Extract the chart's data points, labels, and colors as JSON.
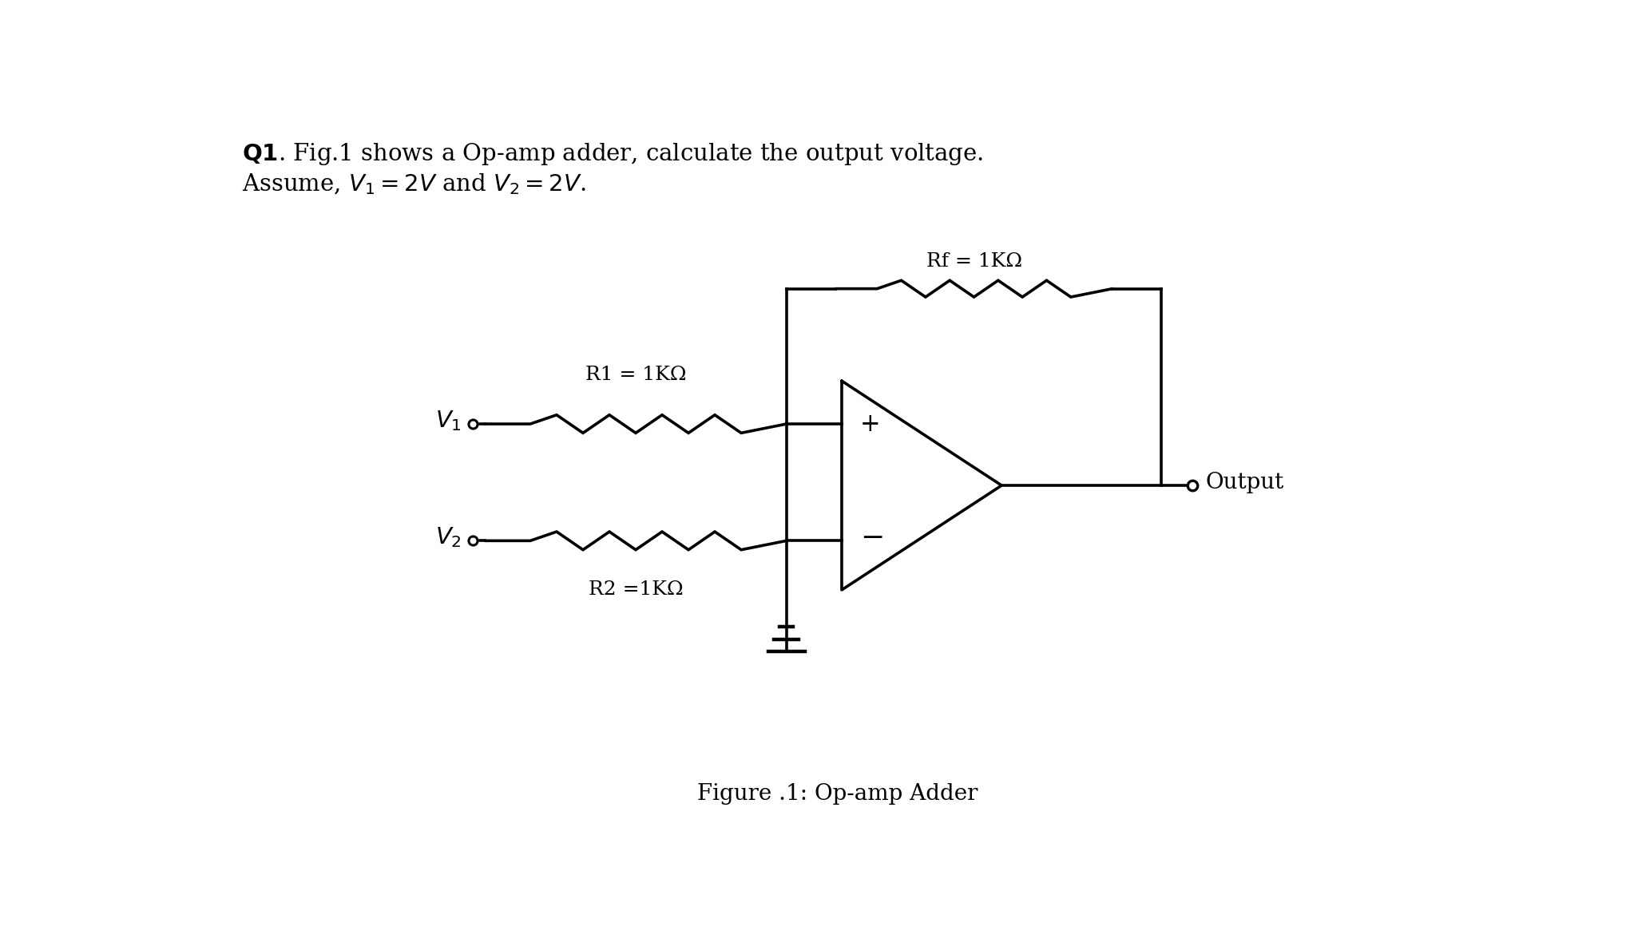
{
  "background_color": "#ffffff",
  "line_color": "#000000",
  "lw": 2.0,
  "R1_label": "R1 = 1KΩ",
  "R2_label": "R2 =1KΩ",
  "Rf_label": "Rf = 1KΩ",
  "output_label": "Output",
  "plus_label": "+",
  "minus_label": "−",
  "figure_caption": "Figure .1: Op-amp Adder",
  "header1": "Fig.1 shows a Op-amp adder, calculate the output voltage.",
  "header2": "Assume, ",
  "header2_math": "V_1 = 2V",
  "header2_and": " and ",
  "header2_math2": "V_2 = 2V",
  "header_bold": "Q1"
}
